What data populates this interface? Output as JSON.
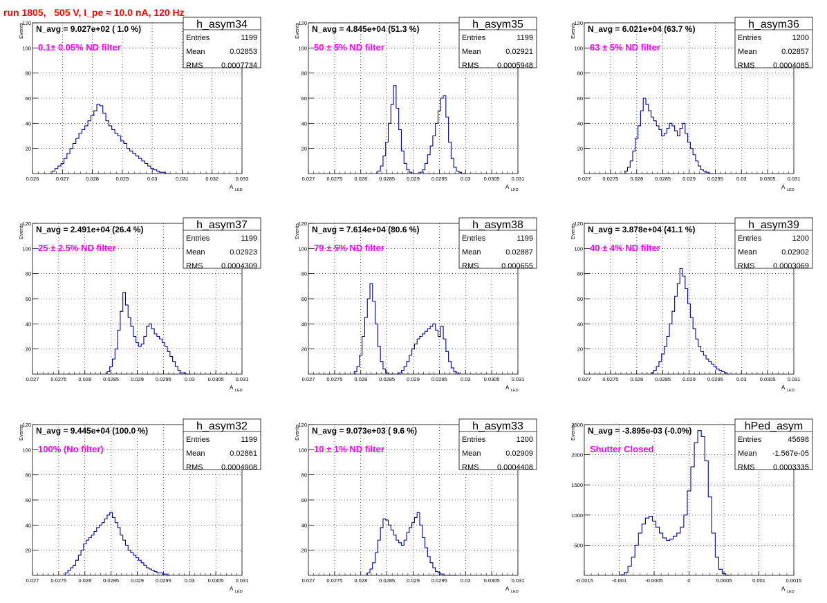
{
  "header": {
    "title": "run 1805,   505 V, I_pe ≈ 10.0 nA, 120 Hz"
  },
  "colors": {
    "hist": "#000099",
    "label": "#ff00ff",
    "title": "#ff0000",
    "axis": "#000000",
    "grid": "#000000"
  },
  "common": {
    "ylabel": "Events",
    "xlabel": "A",
    "xlabel_sub": "LED",
    "stats_labels": [
      "Entries",
      "Mean",
      "RMS"
    ]
  },
  "chart_data": [
    {
      "type": "bar",
      "name": "h_asym34",
      "navg": "N_avg = 9.027e+02 ( 1.0 %)",
      "annotation": "0.1± 0.05% ND filter",
      "stats": {
        "entries": "1199",
        "mean": "0.02853",
        "rms": "0.0007734"
      },
      "xlim": [
        0.026,
        0.033
      ],
      "ylim": [
        0,
        120
      ],
      "xticks": [
        "0.026",
        "0.027",
        "0.028",
        "0.029",
        "0.03",
        "0.031",
        "0.032",
        "0.033"
      ],
      "yticks": [
        "20",
        "40",
        "60",
        "80",
        "100",
        "120"
      ],
      "x": [
        0.0267,
        0.0268,
        0.0269,
        0.027,
        0.0271,
        0.0272,
        0.0273,
        0.0274,
        0.0275,
        0.0276,
        0.0277,
        0.0278,
        0.0279,
        0.028,
        0.0281,
        0.0282,
        0.0283,
        0.0284,
        0.0285,
        0.0286,
        0.0287,
        0.0288,
        0.0289,
        0.029,
        0.0291,
        0.0292,
        0.0293,
        0.0294,
        0.0295,
        0.0296,
        0.0297,
        0.0298,
        0.0299,
        0.03,
        0.0301,
        0.0302,
        0.0303,
        0.0304,
        0.0305
      ],
      "values": [
        2,
        4,
        6,
        8,
        12,
        16,
        20,
        24,
        28,
        32,
        35,
        38,
        42,
        46,
        50,
        55,
        54,
        48,
        42,
        38,
        35,
        32,
        30,
        26,
        24,
        20,
        18,
        16,
        14,
        12,
        10,
        8,
        6,
        4,
        3,
        2,
        1,
        1,
        0
      ]
    },
    {
      "type": "bar",
      "name": "h_asym35",
      "navg": "N_avg = 4.845e+04 (51.3 %)",
      "annotation": "50 ± 5% ND filter",
      "stats": {
        "entries": "1199",
        "mean": "0.02921",
        "rms": "0.0005948"
      },
      "xlim": [
        0.027,
        0.031
      ],
      "ylim": [
        0,
        120
      ],
      "xticks": [
        "0.027",
        "0.0275",
        "0.028",
        "0.0285",
        "0.029",
        "0.0295",
        "0.03",
        "0.0305",
        "0.031"
      ],
      "yticks": [
        "20",
        "40",
        "60",
        "80",
        "100",
        "120"
      ],
      "x": [
        0.02835,
        0.0284,
        0.02845,
        0.0285,
        0.02855,
        0.0286,
        0.02865,
        0.0287,
        0.02875,
        0.0288,
        0.02885,
        0.0289,
        0.02895,
        0.029,
        0.02905,
        0.0291,
        0.02915,
        0.0292,
        0.02925,
        0.0293,
        0.02935,
        0.0294,
        0.02945,
        0.0295,
        0.02955,
        0.0296,
        0.02965,
        0.0297,
        0.02975,
        0.0298,
        0.02985,
        0.0299,
        0.02995,
        0.03
      ],
      "values": [
        2,
        6,
        14,
        25,
        40,
        55,
        70,
        52,
        35,
        18,
        8,
        3,
        1,
        0,
        0,
        0,
        1,
        3,
        8,
        15,
        22,
        30,
        40,
        50,
        60,
        62,
        45,
        25,
        12,
        5,
        2,
        1,
        0,
        0
      ]
    },
    {
      "type": "bar",
      "name": "h_asym36",
      "navg": "N_avg = 6.021e+04 (63.7 %)",
      "annotation": "63 ± 5% ND filter",
      "stats": {
        "entries": "1200",
        "mean": "0.02857",
        "rms": "0.0004085"
      },
      "xlim": [
        0.027,
        0.031
      ],
      "ylim": [
        0,
        120
      ],
      "xticks": [
        "0.027",
        "0.0275",
        "0.028",
        "0.0285",
        "0.029",
        "0.0295",
        "0.03",
        "0.0305",
        "0.031"
      ],
      "yticks": [
        "20",
        "40",
        "60",
        "80",
        "100",
        "120"
      ],
      "x": [
        0.0278,
        0.02785,
        0.0279,
        0.02795,
        0.028,
        0.02805,
        0.0281,
        0.02815,
        0.0282,
        0.02825,
        0.0283,
        0.02835,
        0.0284,
        0.02845,
        0.0285,
        0.02855,
        0.0286,
        0.02865,
        0.0287,
        0.02875,
        0.0288,
        0.02885,
        0.0289,
        0.02895,
        0.029,
        0.02905,
        0.0291,
        0.02915,
        0.0292,
        0.02925,
        0.0293,
        0.02935,
        0.0294
      ],
      "values": [
        2,
        5,
        10,
        18,
        28,
        38,
        50,
        60,
        55,
        50,
        45,
        42,
        38,
        35,
        30,
        32,
        36,
        40,
        38,
        34,
        30,
        36,
        40,
        32,
        25,
        20,
        15,
        10,
        6,
        3,
        2,
        1,
        0
      ]
    },
    {
      "type": "bar",
      "name": "h_asym37",
      "navg": "N_avg = 2.491e+04 (26.4 %)",
      "annotation": "25 ± 2.5% ND filter",
      "stats": {
        "entries": "1199",
        "mean": "0.02923",
        "rms": "0.0004309"
      },
      "xlim": [
        0.027,
        0.031
      ],
      "ylim": [
        0,
        120
      ],
      "xticks": [
        "0.027",
        "0.0275",
        "0.028",
        "0.0285",
        "0.029",
        "0.0295",
        "0.03",
        "0.0305",
        "0.031"
      ],
      "yticks": [
        "20",
        "40",
        "60",
        "80",
        "100",
        "120"
      ],
      "x": [
        0.02845,
        0.0285,
        0.02855,
        0.0286,
        0.02865,
        0.0287,
        0.02875,
        0.0288,
        0.02885,
        0.0289,
        0.02895,
        0.029,
        0.02905,
        0.0291,
        0.02915,
        0.0292,
        0.02925,
        0.0293,
        0.02935,
        0.0294,
        0.02945,
        0.0295,
        0.02955,
        0.0296,
        0.02965,
        0.0297,
        0.02975,
        0.0298,
        0.02985,
        0.0299,
        0.02995,
        0.03
      ],
      "values": [
        2,
        6,
        12,
        20,
        35,
        50,
        65,
        55,
        45,
        38,
        30,
        25,
        22,
        24,
        30,
        38,
        40,
        36,
        32,
        30,
        28,
        25,
        22,
        18,
        14,
        10,
        6,
        3,
        1,
        1,
        0,
        0
      ]
    },
    {
      "type": "bar",
      "name": "h_asym38",
      "navg": "N_avg = 7.614e+04 (80.6 %)",
      "annotation": "79 ± 5% ND filter",
      "stats": {
        "entries": "1199",
        "mean": "0.02887",
        "rms": "0.000655"
      },
      "xlim": [
        0.027,
        0.031
      ],
      "ylim": [
        0,
        120
      ],
      "xticks": [
        "0.027",
        "0.0275",
        "0.028",
        "0.0285",
        "0.029",
        "0.0295",
        "0.03",
        "0.0305",
        "0.031"
      ],
      "yticks": [
        "20",
        "40",
        "60",
        "80",
        "100",
        "120"
      ],
      "x": [
        0.0279,
        0.02795,
        0.028,
        0.02805,
        0.0281,
        0.02815,
        0.0282,
        0.02825,
        0.0283,
        0.02835,
        0.0284,
        0.02845,
        0.0285,
        0.02855,
        0.0286,
        0.02865,
        0.0287,
        0.02875,
        0.0288,
        0.02885,
        0.0289,
        0.02895,
        0.029,
        0.02905,
        0.0291,
        0.02915,
        0.0292,
        0.02925,
        0.0293,
        0.02935,
        0.0294,
        0.02945,
        0.0295,
        0.02955,
        0.0296,
        0.02965,
        0.0297,
        0.02975,
        0.0298,
        0.02985
      ],
      "values": [
        2,
        6,
        15,
        30,
        45,
        60,
        72,
        58,
        40,
        22,
        10,
        4,
        1,
        0,
        0,
        0,
        0,
        1,
        3,
        6,
        10,
        15,
        20,
        24,
        28,
        30,
        32,
        34,
        36,
        38,
        40,
        35,
        30,
        38,
        28,
        18,
        10,
        5,
        2,
        1
      ]
    },
    {
      "type": "bar",
      "name": "h_asym39",
      "navg": "N_avg = 3.878e+04 (41.1 %)",
      "annotation": "40 ± 4% ND filter",
      "stats": {
        "entries": "1200",
        "mean": "0.02902",
        "rms": "0.0003069"
      },
      "xlim": [
        0.027,
        0.031
      ],
      "ylim": [
        0,
        120
      ],
      "xticks": [
        "0.027",
        "0.0275",
        "0.028",
        "0.0285",
        "0.029",
        "0.0295",
        "0.03",
        "0.0305",
        "0.031"
      ],
      "yticks": [
        "20",
        "40",
        "60",
        "80",
        "100",
        "120"
      ],
      "x": [
        0.0283,
        0.02835,
        0.0284,
        0.02845,
        0.0285,
        0.02855,
        0.0286,
        0.02865,
        0.0287,
        0.02875,
        0.0288,
        0.02885,
        0.0289,
        0.02895,
        0.029,
        0.02905,
        0.0291,
        0.02915,
        0.0292,
        0.02925,
        0.0293,
        0.02935,
        0.0294,
        0.02945,
        0.0295,
        0.02955,
        0.0296,
        0.02965,
        0.0297,
        0.02975
      ],
      "values": [
        1,
        3,
        6,
        10,
        16,
        22,
        30,
        40,
        50,
        62,
        72,
        84,
        78,
        68,
        56,
        45,
        36,
        28,
        22,
        18,
        15,
        12,
        10,
        8,
        6,
        4,
        3,
        2,
        1,
        0
      ]
    },
    {
      "type": "bar",
      "name": "h_asym32",
      "navg": "N_avg = 9.445e+04 (100.0 %)",
      "annotation": "100% (No filter)",
      "stats": {
        "entries": "1199",
        "mean": "0.02861",
        "rms": "0.0004908"
      },
      "xlim": [
        0.027,
        0.031
      ],
      "ylim": [
        0,
        120
      ],
      "xticks": [
        "0.027",
        "0.0275",
        "0.028",
        "0.0285",
        "0.029",
        "0.0295",
        "0.03",
        "0.0305",
        "0.031"
      ],
      "yticks": [
        "20",
        "40",
        "60",
        "80",
        "100",
        "120"
      ],
      "x": [
        0.02765,
        0.0277,
        0.02775,
        0.0278,
        0.02785,
        0.0279,
        0.02795,
        0.028,
        0.02805,
        0.0281,
        0.02815,
        0.0282,
        0.02825,
        0.0283,
        0.02835,
        0.0284,
        0.02845,
        0.0285,
        0.02855,
        0.0286,
        0.02865,
        0.0287,
        0.02875,
        0.0288,
        0.02885,
        0.0289,
        0.02895,
        0.029,
        0.02905,
        0.0291,
        0.02915,
        0.0292,
        0.02925,
        0.0293,
        0.02935,
        0.0294,
        0.02945,
        0.0295,
        0.02955,
        0.0296
      ],
      "values": [
        2,
        4,
        6,
        8,
        12,
        16,
        20,
        25,
        28,
        30,
        32,
        35,
        38,
        40,
        42,
        45,
        48,
        50,
        46,
        42,
        38,
        32,
        28,
        24,
        20,
        18,
        16,
        14,
        12,
        10,
        8,
        6,
        5,
        4,
        3,
        2,
        2,
        1,
        1,
        0
      ]
    },
    {
      "type": "bar",
      "name": "h_asym33",
      "navg": "N_avg = 9.073e+03 ( 9.6 %)",
      "annotation": "10 ± 1% ND filter",
      "stats": {
        "entries": "1200",
        "mean": "0.02909",
        "rms": "0.0004408"
      },
      "xlim": [
        0.027,
        0.031
      ],
      "ylim": [
        0,
        120
      ],
      "xticks": [
        "0.027",
        "0.0275",
        "0.028",
        "0.0285",
        "0.029",
        "0.0295",
        "0.03",
        "0.0305",
        "0.031"
      ],
      "yticks": [
        "20",
        "40",
        "60",
        "80",
        "100",
        "120"
      ],
      "x": [
        0.02815,
        0.0282,
        0.02825,
        0.0283,
        0.02835,
        0.0284,
        0.02845,
        0.0285,
        0.02855,
        0.0286,
        0.02865,
        0.0287,
        0.02875,
        0.0288,
        0.02885,
        0.0289,
        0.02895,
        0.029,
        0.02905,
        0.0291,
        0.02915,
        0.0292,
        0.02925,
        0.0293,
        0.02935,
        0.0294,
        0.02945,
        0.0295,
        0.02955,
        0.0296,
        0.02965,
        0.0297,
        0.02975,
        0.0298
      ],
      "values": [
        2,
        5,
        10,
        18,
        28,
        38,
        45,
        44,
        40,
        36,
        32,
        28,
        26,
        24,
        28,
        34,
        38,
        42,
        46,
        50,
        40,
        30,
        22,
        15,
        10,
        6,
        3,
        2,
        1,
        0,
        0,
        0,
        0,
        0
      ]
    },
    {
      "type": "bar",
      "name": "hPed_asym",
      "navg": "N_avg = -3.895e-03 (-0.0%)",
      "annotation": "Shutter Closed",
      "stats": {
        "entries": "45698",
        "mean": "-1.567e-05",
        "rms": "0.0003335"
      },
      "xlim": [
        -0.0015,
        0.0015
      ],
      "ylim": [
        0,
        2500
      ],
      "xticks": [
        "-0.0015",
        "-0.001",
        "-0.0005",
        "0",
        "0.0005",
        "0.001",
        "0.0015"
      ],
      "yticks": [
        "500",
        "1000",
        "1500",
        "2000",
        "2500"
      ],
      "x": [
        -0.00095,
        -0.0009,
        -0.00085,
        -0.0008,
        -0.00075,
        -0.0007,
        -0.00065,
        -0.0006,
        -0.00055,
        -0.0005,
        -0.00045,
        -0.0004,
        -0.00035,
        -0.0003,
        -0.00025,
        -0.0002,
        -0.00015,
        -0.0001,
        -5e-05,
        0,
        5e-05,
        0.0001,
        0.00015,
        0.0002,
        0.00025,
        0.0003,
        0.00035,
        0.0004,
        0.00045,
        0.0005,
        0.00055
      ],
      "values": [
        10,
        50,
        150,
        300,
        500,
        700,
        850,
        950,
        980,
        900,
        800,
        700,
        620,
        580,
        600,
        650,
        700,
        800,
        1000,
        1400,
        1800,
        2200,
        2400,
        2300,
        1900,
        1300,
        700,
        300,
        100,
        30,
        5
      ]
    }
  ]
}
